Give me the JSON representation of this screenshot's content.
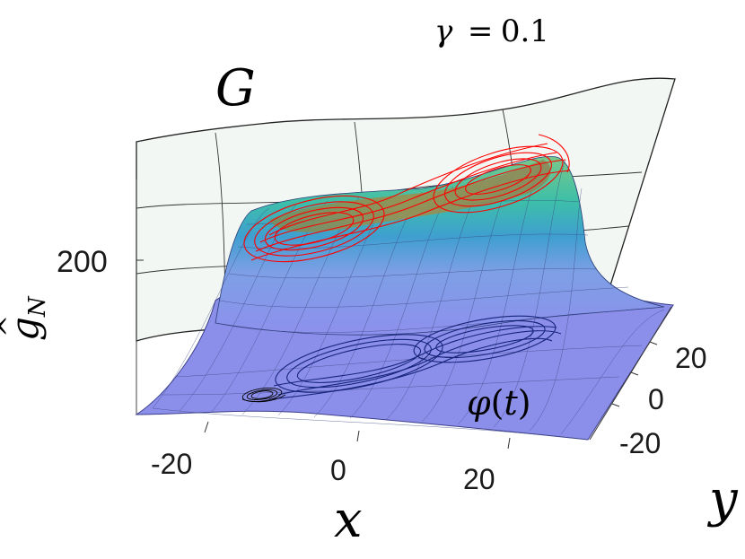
{
  "title": {
    "symbol": "γ",
    "equals": "=",
    "value": "0.1"
  },
  "labels": {
    "surface_G": "G",
    "z_axis_hat": "^",
    "z_axis_main": "g",
    "z_axis_sub": "N",
    "x_axis": "x",
    "y_axis": "y",
    "phi_main": "φ",
    "phi_open": "(",
    "phi_t": "t",
    "phi_close": ")"
  },
  "ticks": {
    "x": [
      "-20",
      "0",
      "20"
    ],
    "y": [
      "20",
      "0",
      "-20"
    ],
    "z": [
      "200"
    ]
  },
  "colors": {
    "upper_attractor": "#ff0000",
    "lower_attractor": "#0a1a6e",
    "projection": "#000000",
    "surface_low": "#8c8fea",
    "surface_mid": "#36a9c9",
    "surface_high": "#9a8a48",
    "upper_sheet": "#f3f7f3"
  }
}
